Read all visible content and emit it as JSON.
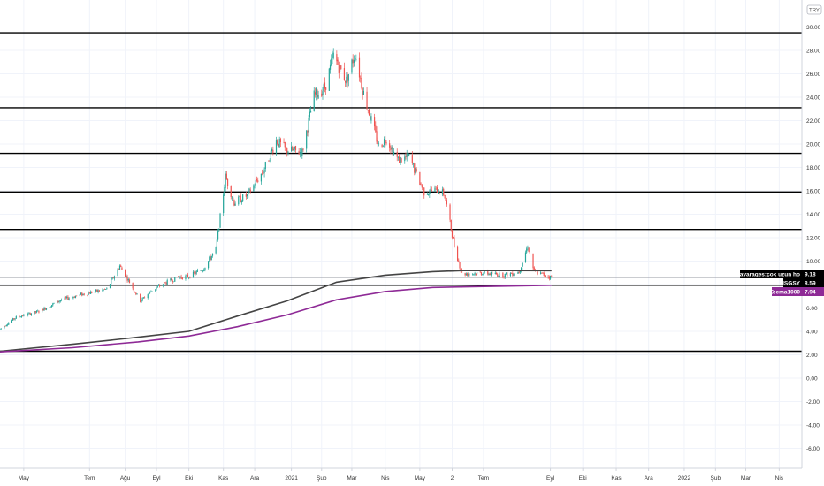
{
  "chart_data": {
    "type": "candlestick",
    "currency_badge": "TRY",
    "y_ticks": [
      -6,
      -4,
      -2,
      0,
      2,
      4,
      6,
      8,
      10,
      12,
      14,
      16,
      18,
      20,
      22,
      24,
      26,
      28,
      30
    ],
    "x_tick_labels": [
      "May",
      "Tem",
      "Ağu",
      "Eyl",
      "Eki",
      "Kas",
      "Ara",
      "2021",
      "Şub",
      "Mar",
      "Nis",
      "May",
      "2",
      "Tem",
      "Eyl",
      "Eki",
      "Kas",
      "Ara",
      "2022",
      "Şub",
      "Mar",
      "Nis"
    ],
    "x_tick_dates": [
      "2020-05-01",
      "2020-07-01",
      "2020-08-03",
      "2020-09-01",
      "2020-10-01",
      "2020-11-02",
      "2020-12-01",
      "2021-01-04",
      "2021-02-01",
      "2021-03-01",
      "2021-04-01",
      "2021-05-03",
      "2021-06-02",
      "2021-07-01",
      "2021-09-01",
      "2021-10-01",
      "2021-11-01",
      "2021-12-01",
      "2022-01-03",
      "2022-02-01",
      "2022-03-01",
      "2022-04-01"
    ],
    "x_range": [
      "2020-04-09",
      "2022-04-22"
    ],
    "y_range": [
      -7.7,
      32.3
    ],
    "horizontal_levels": [
      29.5,
      23.1,
      19.2,
      15.9,
      12.7,
      7.94,
      2.3
    ],
    "price_path": [
      [
        "2020-04-09",
        4.2
      ],
      [
        "2020-04-24",
        5.2
      ],
      [
        "2020-05-15",
        5.7
      ],
      [
        "2020-06-05",
        6.7
      ],
      [
        "2020-06-26",
        7.2
      ],
      [
        "2020-07-17",
        7.6
      ],
      [
        "2020-07-29",
        9.6
      ],
      [
        "2020-08-07",
        8.2
      ],
      [
        "2020-08-17",
        6.6
      ],
      [
        "2020-08-28",
        7.5
      ],
      [
        "2020-09-08",
        8.1
      ],
      [
        "2020-09-21",
        8.6
      ],
      [
        "2020-10-01",
        8.7
      ],
      [
        "2020-10-14",
        9.3
      ],
      [
        "2020-10-26",
        11.0
      ],
      [
        "2020-11-04",
        17.2
      ],
      [
        "2020-11-12",
        15.0
      ],
      [
        "2020-11-24",
        15.6
      ],
      [
        "2020-12-09",
        17.7
      ],
      [
        "2020-12-21",
        20.3
      ],
      [
        "2020-12-30",
        19.5
      ],
      [
        "2021-01-14",
        19.3
      ],
      [
        "2021-01-25",
        24.1
      ],
      [
        "2021-02-04",
        24.8
      ],
      [
        "2021-02-12",
        27.5
      ],
      [
        "2021-02-24",
        25.4
      ],
      [
        "2021-03-04",
        27.8
      ],
      [
        "2021-03-12",
        24.3
      ],
      [
        "2021-03-26",
        19.8
      ],
      [
        "2021-04-02",
        20.5
      ],
      [
        "2021-04-13",
        18.6
      ],
      [
        "2021-04-23",
        18.9
      ],
      [
        "2021-05-07",
        15.9
      ],
      [
        "2021-05-19",
        16.1
      ],
      [
        "2021-05-26",
        15.7
      ],
      [
        "2021-06-04",
        11.3
      ],
      [
        "2021-06-11",
        8.9
      ],
      [
        "2021-06-30",
        9.0
      ],
      [
        "2021-07-20",
        8.8
      ],
      [
        "2021-08-03",
        9.1
      ],
      [
        "2021-08-11",
        11.3
      ],
      [
        "2021-08-17",
        9.1
      ],
      [
        "2021-08-30",
        8.7
      ],
      [
        "2021-09-02",
        8.6
      ]
    ],
    "series": [
      {
        "name": "moving avarages:çok uzun ho",
        "color": "#444444",
        "last_value": 9.18,
        "values": [
          [
            "2020-04-09",
            2.3
          ],
          [
            "2020-06-15",
            2.9
          ],
          [
            "2020-08-15",
            3.5
          ],
          [
            "2020-10-01",
            4.0
          ],
          [
            "2020-11-15",
            5.3
          ],
          [
            "2020-12-31",
            6.6
          ],
          [
            "2021-02-15",
            8.2
          ],
          [
            "2021-04-01",
            8.8
          ],
          [
            "2021-05-15",
            9.1
          ],
          [
            "2021-06-15",
            9.2
          ],
          [
            "2021-09-02",
            9.18
          ]
        ]
      },
      {
        "name": "EC:ema1000",
        "color": "#8e2a96",
        "last_value": 7.94,
        "values": [
          [
            "2020-04-09",
            2.25
          ],
          [
            "2020-06-15",
            2.6
          ],
          [
            "2020-08-15",
            3.1
          ],
          [
            "2020-10-01",
            3.6
          ],
          [
            "2020-11-15",
            4.4
          ],
          [
            "2020-12-31",
            5.4
          ],
          [
            "2021-02-15",
            6.7
          ],
          [
            "2021-04-01",
            7.4
          ],
          [
            "2021-05-15",
            7.75
          ],
          [
            "2021-06-15",
            7.8
          ],
          [
            "2021-09-02",
            7.94
          ]
        ]
      }
    ],
    "price_label": {
      "name": "ISGSY",
      "value": 8.59,
      "color": "#000000"
    },
    "colors": {
      "up": "#26a69a",
      "down": "#ef5350",
      "levels": "#000000",
      "grid": "#f0f3fa"
    }
  }
}
